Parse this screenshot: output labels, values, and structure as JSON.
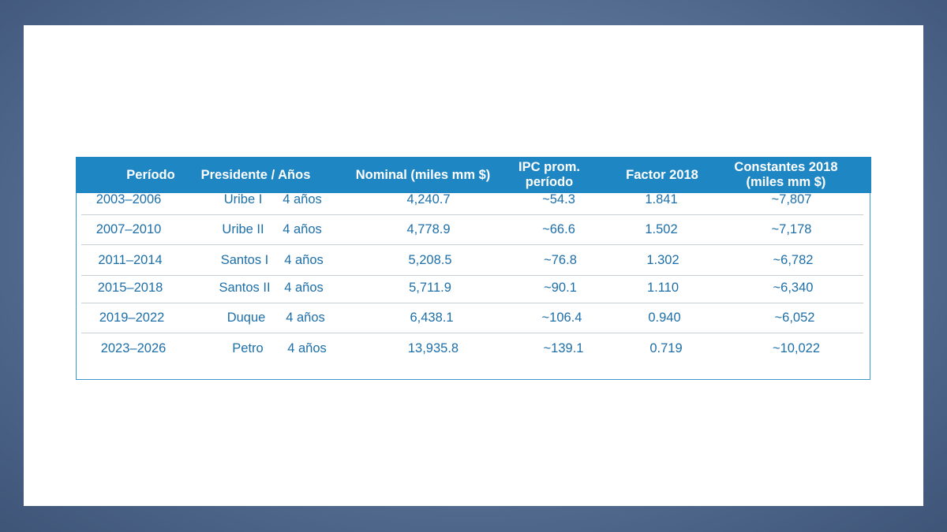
{
  "table": {
    "headers": {
      "periodo": "Período",
      "presidente": "Presidente / Años",
      "nominal": "Nominal (miles mm $)",
      "ipc_line1": "IPC prom.",
      "ipc_line2": "período",
      "factor": "Factor 2018",
      "constantes_line1": "Constantes 2018",
      "constantes_line2": "(miles mm $)"
    },
    "rows": [
      {
        "periodo": "2003–2006",
        "presidente": "Uribe I",
        "anos": "4 años",
        "nominal": "4,240.7",
        "ipc": "~54.3",
        "factor": "1.841",
        "constantes": "~7,807"
      },
      {
        "periodo": "2007–2010",
        "presidente": "Uribe II",
        "anos": "4 años",
        "nominal": "4,778.9",
        "ipc": "~66.6",
        "factor": "1.502",
        "constantes": "~7,178"
      },
      {
        "periodo": "2011–2014",
        "presidente": "Santos I",
        "anos": "4 años",
        "nominal": "5,208.5",
        "ipc": "~76.8",
        "factor": "1.302",
        "constantes": "~6,782"
      },
      {
        "periodo": "2015–2018",
        "presidente": "Santos II",
        "anos": "4 años",
        "nominal": "5,711.9",
        "ipc": "~90.1",
        "factor": "1.110",
        "constantes": "~6,340"
      },
      {
        "periodo": "2019–2022",
        "presidente": "Duque",
        "anos": "4 años",
        "nominal": "6,438.1",
        "ipc": "~106.4",
        "factor": "0.940",
        "constantes": "~6,052"
      },
      {
        "periodo": "2023–2026",
        "presidente": "Petro",
        "anos": "4 años",
        "nominal": "13,935.8",
        "ipc": "~139.1",
        "factor": "0.719",
        "constantes": "~10,022"
      }
    ]
  }
}
